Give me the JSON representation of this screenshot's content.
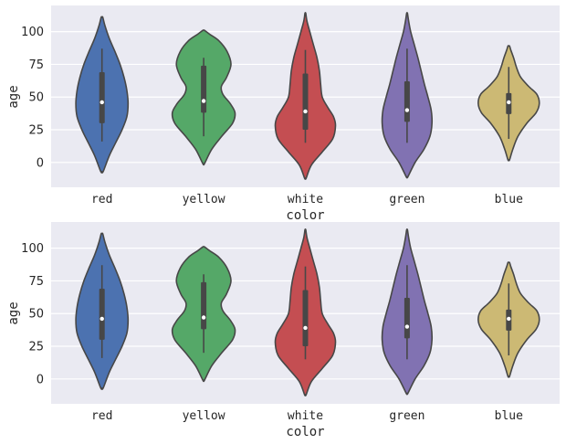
{
  "chart_data": [
    {
      "type": "violin",
      "xlabel": "color",
      "ylabel": "age",
      "categories": [
        "red",
        "yellow",
        "white",
        "green",
        "blue"
      ],
      "colors": [
        "#4C72B0",
        "#55A868",
        "#C44E52",
        "#8172B2",
        "#CCB974"
      ],
      "yticks": [
        0,
        25,
        50,
        75,
        100
      ],
      "ylim": [
        -19,
        120
      ],
      "grid": true,
      "background": "#EAEAF2",
      "series": [
        {
          "category": "red",
          "min": -7,
          "max": 111,
          "q1": 30,
          "median": 46,
          "q3": 69,
          "whisker_low": 16,
          "whisker_high": 87,
          "density": [
            [
              -7,
              0.03
            ],
            [
              5,
              0.18
            ],
            [
              15,
              0.34
            ],
            [
              25,
              0.5
            ],
            [
              35,
              0.62
            ],
            [
              45,
              0.65
            ],
            [
              55,
              0.62
            ],
            [
              65,
              0.55
            ],
            [
              75,
              0.45
            ],
            [
              85,
              0.32
            ],
            [
              95,
              0.18
            ],
            [
              105,
              0.07
            ],
            [
              111,
              0.02
            ]
          ]
        },
        {
          "category": "yellow",
          "min": -1,
          "max": 101,
          "q1": 38,
          "median": 47,
          "q3": 74,
          "whisker_low": 20,
          "whisker_high": 80,
          "density": [
            [
              -1,
              0.02
            ],
            [
              10,
              0.2
            ],
            [
              20,
              0.45
            ],
            [
              30,
              0.72
            ],
            [
              38,
              0.78
            ],
            [
              45,
              0.66
            ],
            [
              52,
              0.48
            ],
            [
              58,
              0.44
            ],
            [
              65,
              0.57
            ],
            [
              75,
              0.68
            ],
            [
              85,
              0.58
            ],
            [
              93,
              0.38
            ],
            [
              98,
              0.15
            ],
            [
              101,
              0.02
            ]
          ]
        },
        {
          "category": "white",
          "min": -12,
          "max": 114,
          "q1": 25,
          "median": 39,
          "q3": 68,
          "whisker_low": 15,
          "whisker_high": 86,
          "density": [
            [
              -12,
              0.02
            ],
            [
              -2,
              0.15
            ],
            [
              8,
              0.42
            ],
            [
              18,
              0.68
            ],
            [
              28,
              0.75
            ],
            [
              35,
              0.7
            ],
            [
              42,
              0.56
            ],
            [
              50,
              0.42
            ],
            [
              60,
              0.38
            ],
            [
              70,
              0.35
            ],
            [
              80,
              0.29
            ],
            [
              90,
              0.2
            ],
            [
              100,
              0.11
            ],
            [
              108,
              0.04
            ],
            [
              114,
              0.01
            ]
          ]
        },
        {
          "category": "green",
          "min": -11,
          "max": 114,
          "q1": 31,
          "median": 40,
          "q3": 62,
          "whisker_low": 15,
          "whisker_high": 87,
          "density": [
            [
              -11,
              0.02
            ],
            [
              0,
              0.2
            ],
            [
              10,
              0.42
            ],
            [
              20,
              0.57
            ],
            [
              30,
              0.62
            ],
            [
              40,
              0.6
            ],
            [
              50,
              0.52
            ],
            [
              60,
              0.43
            ],
            [
              70,
              0.35
            ],
            [
              80,
              0.27
            ],
            [
              90,
              0.18
            ],
            [
              100,
              0.09
            ],
            [
              108,
              0.04
            ],
            [
              114,
              0.01
            ]
          ]
        },
        {
          "category": "blue",
          "min": 2,
          "max": 89,
          "q1": 37,
          "median": 46,
          "q3": 53,
          "whisker_low": 18,
          "whisker_high": 73,
          "density": [
            [
              2,
              0.02
            ],
            [
              10,
              0.1
            ],
            [
              20,
              0.23
            ],
            [
              30,
              0.45
            ],
            [
              38,
              0.68
            ],
            [
              45,
              0.76
            ],
            [
              52,
              0.7
            ],
            [
              58,
              0.5
            ],
            [
              65,
              0.3
            ],
            [
              72,
              0.2
            ],
            [
              80,
              0.12
            ],
            [
              86,
              0.05
            ],
            [
              89,
              0.02
            ]
          ]
        }
      ]
    },
    {
      "type": "violin",
      "xlabel": "color",
      "ylabel": "age",
      "categories": [
        "red",
        "yellow",
        "white",
        "green",
        "blue"
      ],
      "colors": [
        "#4C72B0",
        "#55A868",
        "#C44E52",
        "#8172B2",
        "#CCB974"
      ],
      "yticks": [
        0,
        25,
        50,
        75,
        100
      ],
      "ylim": [
        -19,
        120
      ],
      "grid": true,
      "background": "#EAEAF2",
      "series": [
        {
          "category": "red",
          "min": -7,
          "max": 111,
          "q1": 30,
          "median": 46,
          "q3": 69,
          "whisker_low": 16,
          "whisker_high": 87,
          "density": [
            [
              -7,
              0.03
            ],
            [
              5,
              0.18
            ],
            [
              15,
              0.34
            ],
            [
              25,
              0.5
            ],
            [
              35,
              0.62
            ],
            [
              45,
              0.65
            ],
            [
              55,
              0.62
            ],
            [
              65,
              0.55
            ],
            [
              75,
              0.45
            ],
            [
              85,
              0.32
            ],
            [
              95,
              0.18
            ],
            [
              105,
              0.07
            ],
            [
              111,
              0.02
            ]
          ]
        },
        {
          "category": "yellow",
          "min": -1,
          "max": 101,
          "q1": 38,
          "median": 47,
          "q3": 74,
          "whisker_low": 20,
          "whisker_high": 80,
          "density": [
            [
              -1,
              0.02
            ],
            [
              10,
              0.2
            ],
            [
              20,
              0.45
            ],
            [
              30,
              0.72
            ],
            [
              38,
              0.78
            ],
            [
              45,
              0.66
            ],
            [
              52,
              0.48
            ],
            [
              58,
              0.44
            ],
            [
              65,
              0.57
            ],
            [
              75,
              0.68
            ],
            [
              85,
              0.58
            ],
            [
              93,
              0.38
            ],
            [
              98,
              0.15
            ],
            [
              101,
              0.02
            ]
          ]
        },
        {
          "category": "white",
          "min": -12,
          "max": 114,
          "q1": 25,
          "median": 39,
          "q3": 68,
          "whisker_low": 15,
          "whisker_high": 86,
          "density": [
            [
              -12,
              0.02
            ],
            [
              -2,
              0.15
            ],
            [
              8,
              0.42
            ],
            [
              18,
              0.68
            ],
            [
              28,
              0.75
            ],
            [
              35,
              0.7
            ],
            [
              42,
              0.56
            ],
            [
              50,
              0.42
            ],
            [
              60,
              0.38
            ],
            [
              70,
              0.35
            ],
            [
              80,
              0.29
            ],
            [
              90,
              0.2
            ],
            [
              100,
              0.11
            ],
            [
              108,
              0.04
            ],
            [
              114,
              0.01
            ]
          ]
        },
        {
          "category": "green",
          "min": -11,
          "max": 114,
          "q1": 31,
          "median": 40,
          "q3": 62,
          "whisker_low": 15,
          "whisker_high": 87,
          "density": [
            [
              -11,
              0.02
            ],
            [
              0,
              0.2
            ],
            [
              10,
              0.42
            ],
            [
              20,
              0.57
            ],
            [
              30,
              0.62
            ],
            [
              40,
              0.6
            ],
            [
              50,
              0.52
            ],
            [
              60,
              0.43
            ],
            [
              70,
              0.35
            ],
            [
              80,
              0.27
            ],
            [
              90,
              0.18
            ],
            [
              100,
              0.09
            ],
            [
              108,
              0.04
            ],
            [
              114,
              0.01
            ]
          ]
        },
        {
          "category": "blue",
          "min": 2,
          "max": 89,
          "q1": 37,
          "median": 46,
          "q3": 53,
          "whisker_low": 18,
          "whisker_high": 73,
          "density": [
            [
              2,
              0.02
            ],
            [
              10,
              0.1
            ],
            [
              20,
              0.23
            ],
            [
              30,
              0.45
            ],
            [
              38,
              0.68
            ],
            [
              45,
              0.76
            ],
            [
              52,
              0.7
            ],
            [
              58,
              0.5
            ],
            [
              65,
              0.3
            ],
            [
              72,
              0.2
            ],
            [
              80,
              0.12
            ],
            [
              86,
              0.05
            ],
            [
              89,
              0.02
            ]
          ]
        }
      ]
    }
  ]
}
